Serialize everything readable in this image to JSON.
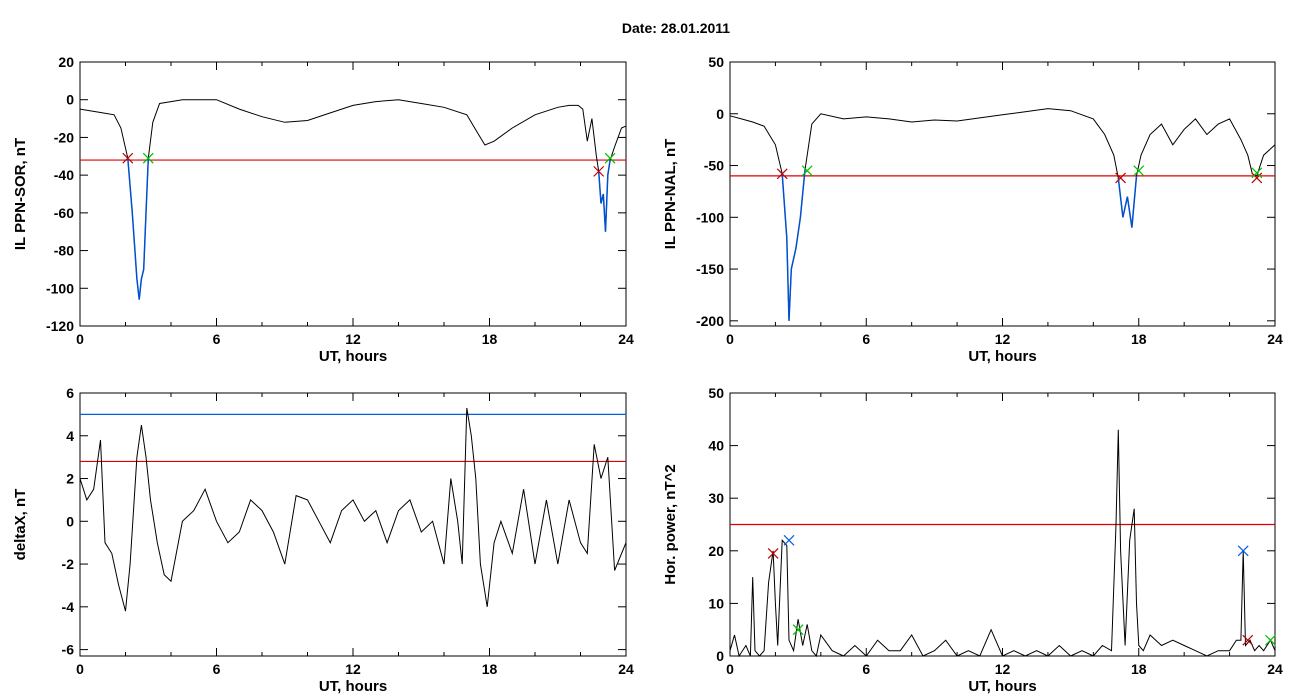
{
  "figure": {
    "title": "Date:  28.01.2011"
  },
  "colors": {
    "data": "#000000",
    "threshold": "#e00000",
    "upper_threshold": "#0060e0",
    "highlight": "#0050d0",
    "start_marker": "#c00000",
    "end_marker": "#00c000"
  },
  "chart_data": [
    {
      "id": "p1",
      "type": "line",
      "xlabel": "UT, hours",
      "ylabel": "IL PPN-SOR, nT",
      "xlim": [
        0,
        24
      ],
      "ylim": [
        -120,
        20
      ],
      "xticks": [
        0,
        6,
        12,
        18,
        24
      ],
      "yticks": [
        20,
        0,
        -20,
        -40,
        -60,
        -80,
        -100,
        -120
      ],
      "series": [
        {
          "x": [
            0,
            0.5,
            1,
            1.5,
            1.8,
            2.1,
            2.3,
            2.5,
            2.6,
            2.7,
            2.8,
            2.9,
            3.0,
            3.2,
            3.5,
            4.0,
            4.5,
            5,
            6,
            7,
            8,
            9,
            10,
            11,
            12,
            13,
            14,
            15,
            16,
            17,
            17.5,
            17.8,
            18.2,
            19,
            20,
            21,
            21.5,
            21.9,
            22.1,
            22.3,
            22.5,
            22.7,
            22.8,
            22.9,
            23.0,
            23.1,
            23.2,
            23.3,
            23.5,
            23.8,
            24
          ],
          "y": [
            -5,
            -6,
            -7,
            -8,
            -15,
            -31,
            -60,
            -95,
            -106,
            -95,
            -90,
            -60,
            -31,
            -12,
            -2,
            -1,
            0,
            0,
            0,
            -5,
            -9,
            -12,
            -11,
            -7,
            -3,
            -1,
            0,
            -2,
            -4,
            -8,
            -18,
            -24,
            -22,
            -15,
            -8,
            -4,
            -3,
            -3,
            -5,
            -22,
            -10,
            -30,
            -38,
            -55,
            -50,
            -70,
            -40,
            -32,
            -25,
            -15,
            -14
          ]
        }
      ],
      "thresholds": [
        -32
      ],
      "highlights": [
        [
          2.0,
          3.0
        ],
        [
          22.8,
          23.3
        ]
      ],
      "start_markers": [
        [
          2.1,
          -31
        ],
        [
          22.8,
          -38
        ]
      ],
      "end_markers": [
        [
          3.0,
          -31
        ],
        [
          23.3,
          -31
        ]
      ]
    },
    {
      "id": "p2",
      "type": "line",
      "xlabel": "UT, hours",
      "ylabel": "IL PPN-NAL, nT",
      "xlim": [
        0,
        24
      ],
      "ylim": [
        -205,
        50
      ],
      "xticks": [
        0,
        6,
        12,
        18,
        24
      ],
      "yticks": [
        50,
        0,
        -50,
        -100,
        -150,
        -200
      ],
      "series": [
        {
          "x": [
            0,
            0.5,
            1,
            1.5,
            2.0,
            2.3,
            2.5,
            2.6,
            2.7,
            2.9,
            3.1,
            3.3,
            3.6,
            4,
            5,
            6,
            7,
            8,
            9,
            10,
            11,
            12,
            13,
            14,
            15,
            16,
            16.5,
            16.9,
            17.1,
            17.3,
            17.5,
            17.7,
            17.9,
            18.1,
            18.5,
            19,
            19.5,
            20,
            20.5,
            21,
            21.5,
            22,
            22.5,
            22.8,
            23.0,
            23.2,
            23.5,
            24
          ],
          "y": [
            -2,
            -5,
            -8,
            -12,
            -30,
            -58,
            -120,
            -200,
            -150,
            -130,
            -100,
            -55,
            -10,
            0,
            -5,
            -3,
            -5,
            -8,
            -6,
            -7,
            -4,
            -1,
            2,
            5,
            3,
            -5,
            -20,
            -40,
            -62,
            -100,
            -80,
            -110,
            -60,
            -40,
            -20,
            -10,
            -30,
            -15,
            -5,
            -20,
            -10,
            -5,
            -25,
            -40,
            -58,
            -60,
            -40,
            -30
          ]
        }
      ],
      "thresholds": [
        -60
      ],
      "highlights": [
        [
          2.3,
          3.3
        ],
        [
          17.1,
          17.9
        ]
      ],
      "start_markers": [
        [
          2.3,
          -58
        ],
        [
          17.2,
          -62
        ],
        [
          23.2,
          -62
        ]
      ],
      "end_markers": [
        [
          3.4,
          -55
        ],
        [
          18.0,
          -55
        ],
        [
          23.2,
          -57
        ]
      ]
    },
    {
      "id": "p3",
      "type": "line",
      "xlabel": "UT, hours",
      "ylabel": "deltaX, nT",
      "xlim": [
        0,
        24
      ],
      "ylim": [
        -6.3,
        6
      ],
      "xticks": [
        0,
        6,
        12,
        18,
        24
      ],
      "yticks": [
        6,
        4,
        2,
        0,
        -2,
        -4,
        -6
      ],
      "series": [
        {
          "x": [
            0,
            0.3,
            0.6,
            0.9,
            1.1,
            1.4,
            1.7,
            2.0,
            2.2,
            2.5,
            2.7,
            2.9,
            3.1,
            3.4,
            3.7,
            4.0,
            4.5,
            5,
            5.5,
            6,
            6.5,
            7,
            7.5,
            8,
            8.5,
            9,
            9.5,
            10,
            10.5,
            11,
            11.5,
            12,
            12.5,
            13,
            13.5,
            14,
            14.5,
            15,
            15.5,
            16,
            16.3,
            16.6,
            16.8,
            17.0,
            17.2,
            17.4,
            17.6,
            17.9,
            18.2,
            18.5,
            19,
            19.5,
            20,
            20.5,
            21,
            21.5,
            22,
            22.3,
            22.6,
            22.9,
            23.2,
            23.5,
            24
          ],
          "y": [
            2,
            1,
            1.5,
            3.8,
            -1,
            -1.5,
            -3,
            -4.2,
            -2,
            3,
            4.5,
            3,
            1,
            -1,
            -2.5,
            -2.8,
            0,
            0.5,
            1.5,
            0,
            -1,
            -0.5,
            1,
            0.5,
            -0.5,
            -2,
            1.2,
            1,
            0,
            -1,
            0.5,
            1,
            0,
            0.5,
            -1,
            0.5,
            1,
            -0.5,
            0,
            -2,
            2,
            0,
            -2,
            5.3,
            4,
            2,
            -2,
            -4,
            -1,
            0,
            -1.5,
            1.5,
            -2,
            1,
            -2,
            1,
            -1,
            -1.5,
            3.6,
            2,
            3,
            -2.3,
            -1
          ]
        }
      ],
      "thresholds": [
        2.8
      ],
      "upper_thresholds": [
        5.0
      ],
      "highlights": [],
      "start_markers": [],
      "end_markers": []
    },
    {
      "id": "p4",
      "type": "line",
      "xlabel": "UT, hours",
      "ylabel": "Hor. power, nT^2",
      "xlim": [
        0,
        24
      ],
      "ylim": [
        0,
        50
      ],
      "xticks": [
        0,
        6,
        12,
        18,
        24
      ],
      "yticks": [
        50,
        40,
        30,
        20,
        10,
        0
      ],
      "series": [
        {
          "x": [
            0,
            0.2,
            0.4,
            0.7,
            0.9,
            1.0,
            1.1,
            1.3,
            1.5,
            1.7,
            1.9,
            2.0,
            2.1,
            2.3,
            2.5,
            2.6,
            2.8,
            3.0,
            3.2,
            3.4,
            3.6,
            3.8,
            4.0,
            4.5,
            5,
            5.5,
            6,
            6.5,
            7,
            7.5,
            8,
            8.5,
            9,
            9.5,
            10,
            10.5,
            11,
            11.5,
            12,
            12.5,
            13,
            13.5,
            14,
            14.5,
            15,
            15.5,
            16,
            16.4,
            16.8,
            17.0,
            17.1,
            17.2,
            17.4,
            17.6,
            17.8,
            17.9,
            18.0,
            18.2,
            18.5,
            19,
            19.5,
            20,
            20.5,
            21,
            21.5,
            22,
            22.3,
            22.5,
            22.6,
            22.7,
            22.9,
            23.1,
            23.3,
            23.5,
            23.8,
            24
          ],
          "y": [
            1,
            4,
            0,
            2,
            0,
            15,
            1,
            0,
            1,
            14,
            20,
            10,
            2,
            22,
            21,
            3,
            1,
            7,
            2,
            6,
            1,
            0,
            4,
            1,
            0,
            2,
            0,
            3,
            1,
            1,
            4,
            0,
            1,
            3,
            0,
            1,
            0,
            5,
            0,
            1,
            0,
            1,
            0,
            2,
            0,
            1,
            0,
            2,
            1,
            25,
            43,
            20,
            2,
            22,
            28,
            10,
            2,
            1,
            4,
            2,
            3,
            2,
            1,
            0,
            1,
            1,
            3,
            3,
            20,
            2,
            3,
            1,
            2,
            1,
            3,
            1
          ]
        }
      ],
      "thresholds": [
        25
      ],
      "highlights": [],
      "start_markers": [
        [
          1.9,
          19.5
        ],
        [
          22.8,
          3
        ]
      ],
      "end_markers": [
        [
          3.0,
          5
        ],
        [
          23.8,
          3
        ]
      ],
      "peak_markers": [
        [
          2.6,
          22
        ],
        [
          22.6,
          20
        ]
      ]
    }
  ]
}
